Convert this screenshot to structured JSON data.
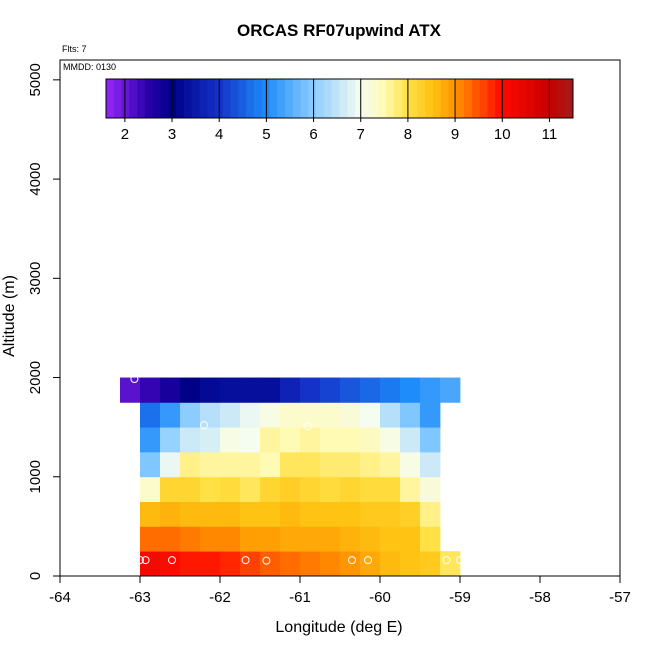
{
  "chart_data": {
    "type": "heatmap",
    "title": "ORCAS RF07upwind ATX",
    "xlabel": "Longitude (deg E)",
    "ylabel": "Altitude (m)",
    "flights_label": "Flts: 7",
    "date_label": "MMDD: 0130",
    "xlim": [
      -64,
      -57
    ],
    "ylim": [
      0,
      5200
    ],
    "x_ticks": [
      -64,
      -63,
      -62,
      -61,
      -60,
      -59,
      -58,
      -57
    ],
    "y_ticks": [
      0,
      1000,
      2000,
      3000,
      4000,
      5000
    ],
    "colorbar": {
      "range": [
        1.6,
        11.5
      ],
      "ticks": [
        2,
        3,
        4,
        5,
        6,
        7,
        8,
        9,
        10,
        11
      ]
    },
    "grid": {
      "lon_start": -63.25,
      "lon_step": 0.25,
      "alt_step": 250,
      "rows": [
        {
          "alt_bottom": 0,
          "start_col": 1,
          "values": [
            10.2,
            10.0,
            9.9,
            9.9,
            9.8,
            9.6,
            9.4,
            9.3,
            9.2,
            9.1,
            9.0,
            8.8,
            8.6,
            8.5,
            8.4,
            7.9
          ]
        },
        {
          "alt_bottom": 250,
          "start_col": 1,
          "values": [
            9.3,
            9.3,
            9.2,
            9.1,
            9.1,
            8.9,
            8.9,
            8.8,
            8.8,
            8.8,
            8.7,
            8.6,
            8.5,
            8.5,
            8.0
          ]
        },
        {
          "alt_bottom": 500,
          "start_col": 1,
          "values": [
            8.6,
            8.7,
            8.6,
            8.6,
            8.6,
            8.5,
            8.5,
            8.6,
            8.5,
            8.5,
            8.5,
            8.4,
            8.4,
            8.3,
            7.7
          ]
        },
        {
          "alt_bottom": 750,
          "start_col": 1,
          "values": [
            7.3,
            8.2,
            8.2,
            8.0,
            8.1,
            7.9,
            8.2,
            8.3,
            8.2,
            8.1,
            8.2,
            8.1,
            8.1,
            7.6,
            7.2
          ]
        },
        {
          "alt_bottom": 1000,
          "start_col": 1,
          "values": [
            5.9,
            6.9,
            7.7,
            7.6,
            7.6,
            7.6,
            7.5,
            7.9,
            7.9,
            7.8,
            7.8,
            7.7,
            7.6,
            7.1,
            6.6
          ]
        },
        {
          "alt_bottom": 1250,
          "start_col": 1,
          "values": [
            5.2,
            6.1,
            6.6,
            6.7,
            7.1,
            7.0,
            7.6,
            7.5,
            7.6,
            7.5,
            7.5,
            7.4,
            7.1,
            6.6,
            5.9
          ]
        },
        {
          "alt_bottom": 1500,
          "start_col": 1,
          "values": [
            4.7,
            5.2,
            6.0,
            6.4,
            6.6,
            6.9,
            7.1,
            7.3,
            7.3,
            7.3,
            7.2,
            7.0,
            6.4,
            5.9,
            5.2
          ]
        },
        {
          "alt_bottom": 1750,
          "start_col": 0,
          "values": [
            2.1,
            2.4,
            2.7,
            3.0,
            3.2,
            3.3,
            3.3,
            3.3,
            3.7,
            4.0,
            4.2,
            4.4,
            4.6,
            4.8,
            5.0,
            5.2,
            5.4
          ]
        }
      ]
    },
    "flight_points": [
      {
        "lon": -63.0,
        "alt": 160
      },
      {
        "lon": -62.93,
        "alt": 160
      },
      {
        "lon": -62.6,
        "alt": 160
      },
      {
        "lon": -61.68,
        "alt": 160
      },
      {
        "lon": -61.42,
        "alt": 155
      },
      {
        "lon": -60.35,
        "alt": 160
      },
      {
        "lon": -60.15,
        "alt": 160
      },
      {
        "lon": -59.17,
        "alt": 160
      },
      {
        "lon": -59.0,
        "alt": 160
      },
      {
        "lon": -58.72,
        "alt": 160
      },
      {
        "lon": -63.07,
        "alt": 1985
      },
      {
        "lon": -58.83,
        "alt": 1900
      },
      {
        "lon": -62.2,
        "alt": 1520
      },
      {
        "lon": -60.9,
        "alt": 1510
      }
    ]
  }
}
